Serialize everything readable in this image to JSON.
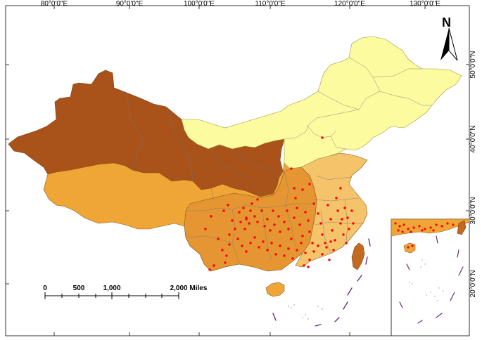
{
  "map": {
    "title": "",
    "longitude_labels": [
      "80°0'0\"E",
      "90°0'0\"E",
      "100°0'0\"E",
      "110°0'0\"E",
      "120°0'0\"E",
      "130°0'0\"E"
    ],
    "latitude_labels": [
      "50°0'0\"N",
      "40°0'0\"N",
      "30°0'0\"N",
      "20°0'0\"N",
      "30°0'0\"N",
      "20°0'0\"N"
    ],
    "north_arrow": {
      "label": "N",
      "icon": "north-arrow-icon"
    },
    "scale_bar": {
      "ticks": [
        "0",
        "500",
        "1,000",
        "2,000 Miles"
      ]
    },
    "inset": {
      "description_visible": false
    },
    "colors": {
      "dark_brown": "#a9521a",
      "orange": "#f0a537",
      "dark_orange": "#e59632",
      "light_orange": "#f5c36a",
      "pale_yellow": "#fdfba0",
      "points": "#ff0000",
      "dashed_boundary": "#6a2c8c"
    }
  }
}
